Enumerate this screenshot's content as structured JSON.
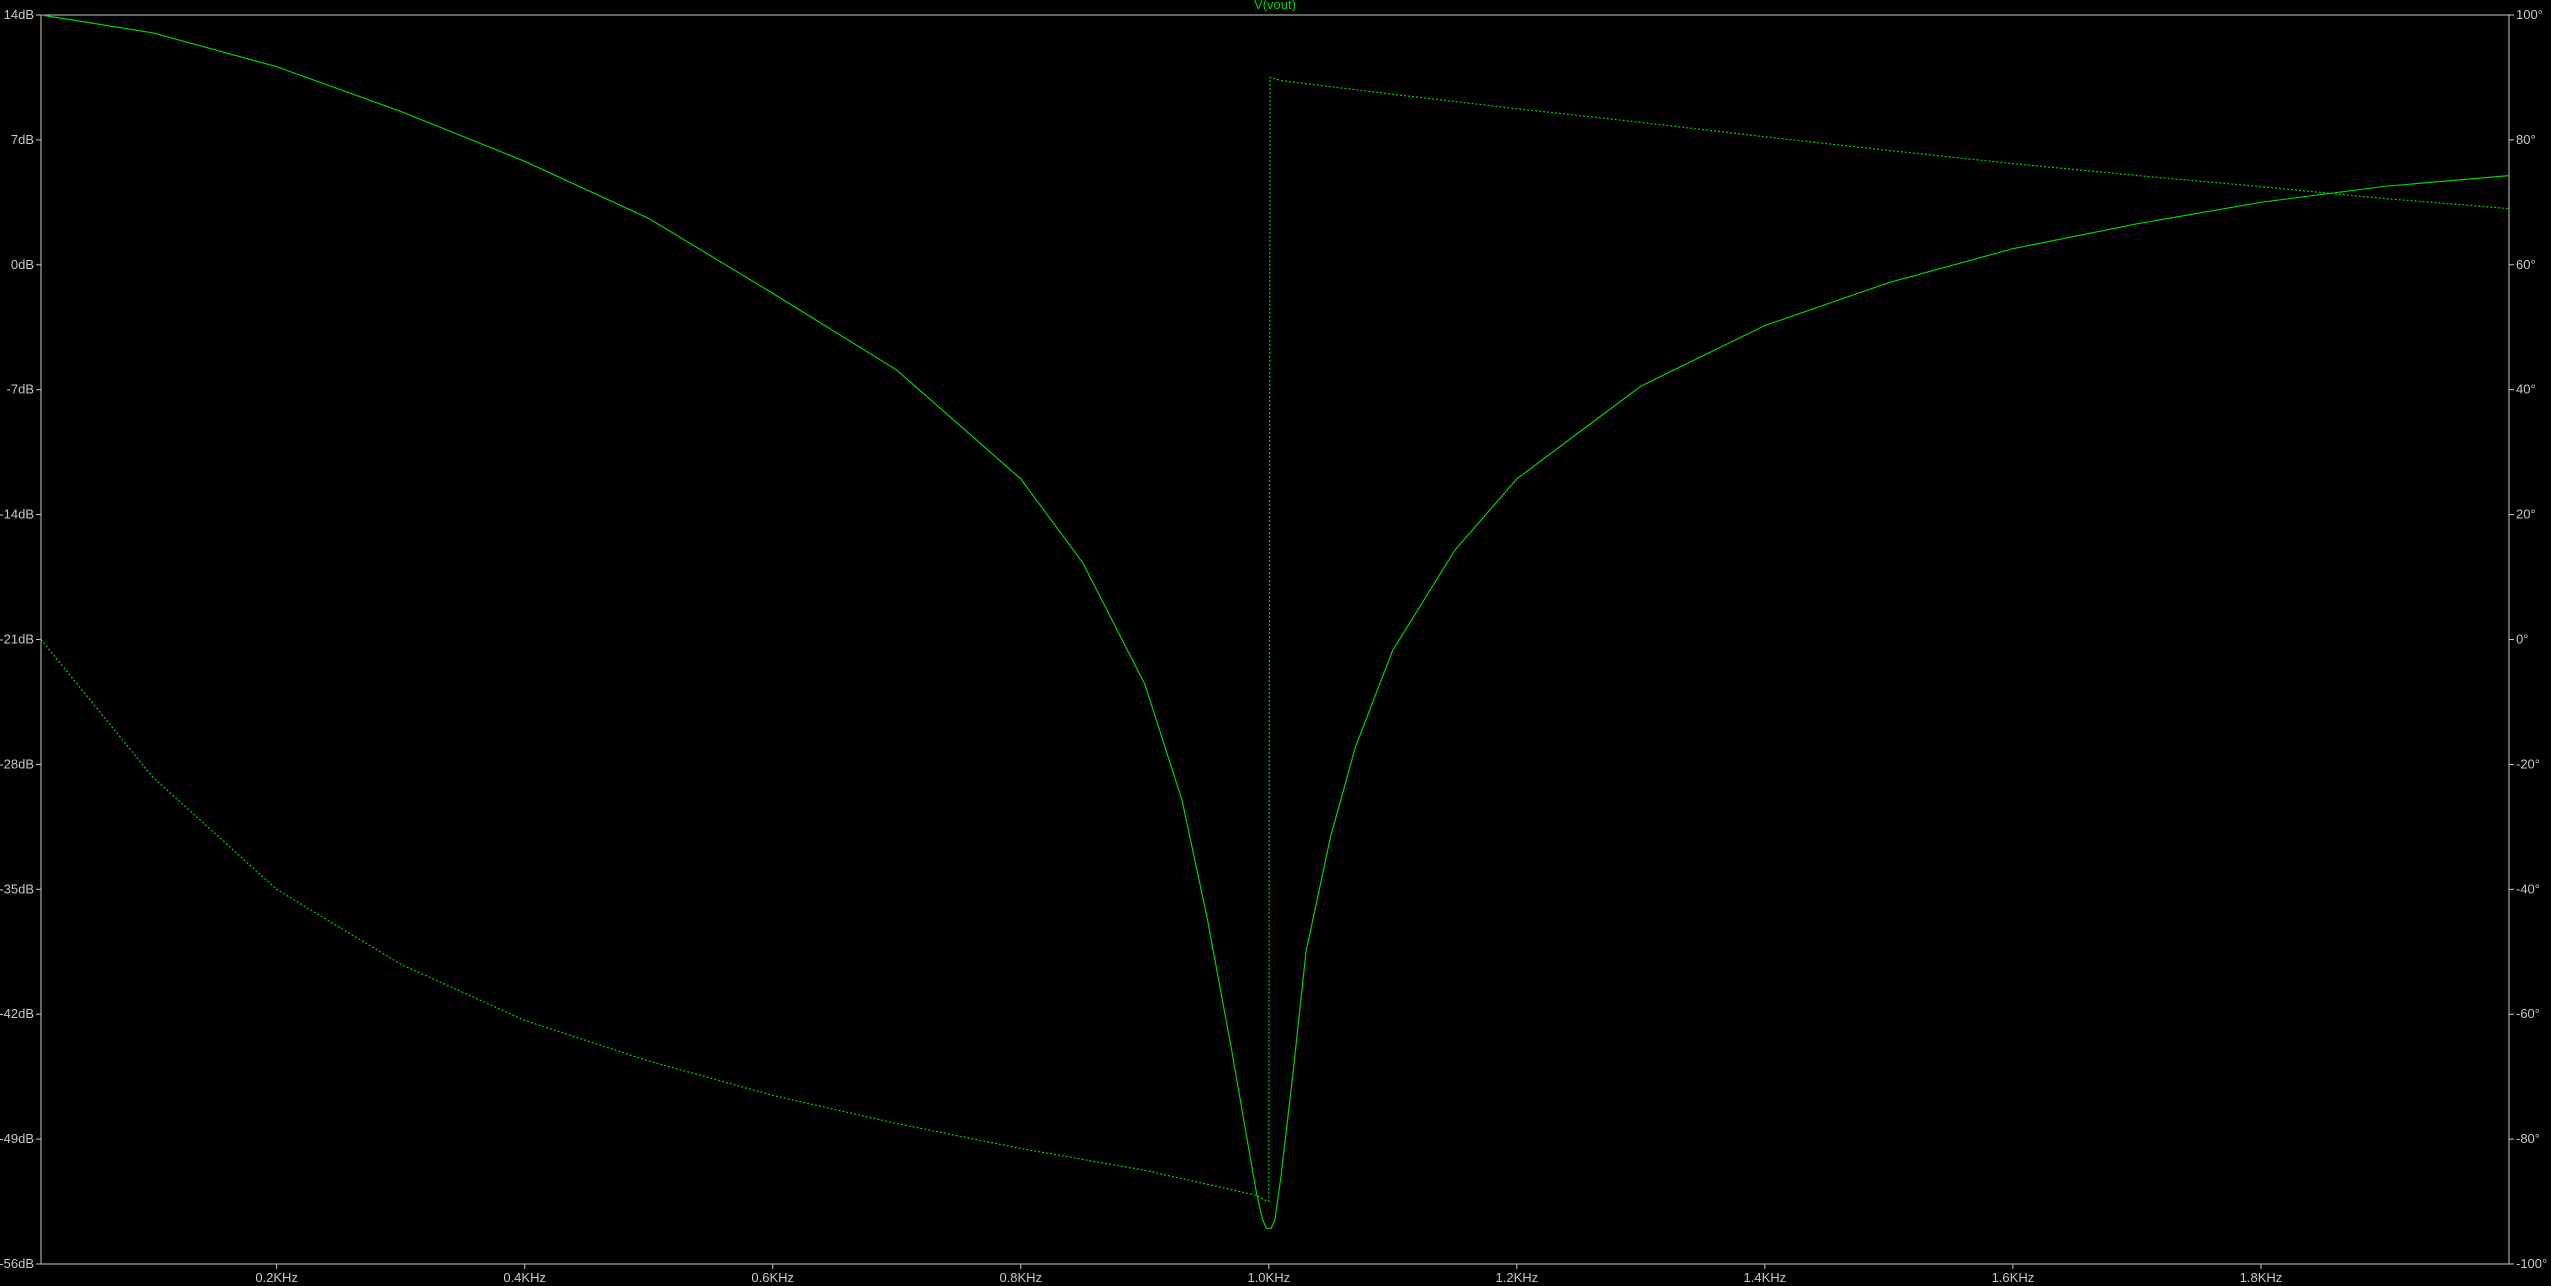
{
  "chart_data": {
    "type": "line",
    "title": "V(vout)",
    "xlabel": "",
    "ylabel": "",
    "grid": false,
    "colors": {
      "background": "#000000",
      "frame": "#c8c8c8",
      "trace": "#00d200",
      "title": "#00d200",
      "tick_text": "#c8c8c8"
    },
    "x_axis": {
      "unit": "Hz",
      "range": [
        10,
        2000
      ],
      "ticks": [
        {
          "value": 200,
          "label": "0.2KHz"
        },
        {
          "value": 400,
          "label": "0.4KHz"
        },
        {
          "value": 600,
          "label": "0.6KHz"
        },
        {
          "value": 800,
          "label": "0.8KHz"
        },
        {
          "value": 1000,
          "label": "1.0KHz"
        },
        {
          "value": 1200,
          "label": "1.2KHz"
        },
        {
          "value": 1400,
          "label": "1.4KHz"
        },
        {
          "value": 1600,
          "label": "1.6KHz"
        },
        {
          "value": 1800,
          "label": "1.8KHz"
        }
      ]
    },
    "y_left": {
      "unit": "dB",
      "range": [
        -56,
        14
      ],
      "ticks": [
        {
          "value": 14,
          "label": "14dB"
        },
        {
          "value": 7,
          "label": "7dB"
        },
        {
          "value": 0,
          "label": "0dB"
        },
        {
          "value": -7,
          "label": "-7dB"
        },
        {
          "value": -14,
          "label": "-14dB"
        },
        {
          "value": -21,
          "label": "-21dB"
        },
        {
          "value": -28,
          "label": "-28dB"
        },
        {
          "value": -35,
          "label": "-35dB"
        },
        {
          "value": -42,
          "label": "-42dB"
        },
        {
          "value": -49,
          "label": "-49dB"
        },
        {
          "value": -56,
          "label": "-56dB"
        }
      ]
    },
    "y_right": {
      "unit": "deg",
      "range": [
        -100,
        100
      ],
      "ticks": [
        {
          "value": 100,
          "label": "100°"
        },
        {
          "value": 80,
          "label": "80°"
        },
        {
          "value": 60,
          "label": "60°"
        },
        {
          "value": 40,
          "label": "40°"
        },
        {
          "value": 20,
          "label": "20°"
        },
        {
          "value": 0,
          "label": "0°"
        },
        {
          "value": -20,
          "label": "-20°"
        },
        {
          "value": -40,
          "label": "-40°"
        },
        {
          "value": -60,
          "label": "-60°"
        },
        {
          "value": -80,
          "label": "-80°"
        },
        {
          "value": -100,
          "label": "-100°"
        }
      ]
    },
    "series": [
      {
        "axis": "left",
        "style": "solid",
        "x": [
          10,
          100,
          200,
          300,
          400,
          500,
          600,
          700,
          800,
          850,
          900,
          930,
          950,
          970,
          980,
          990,
          995,
          998,
          1000,
          1002,
          1005,
          1010,
          1020,
          1030,
          1050,
          1070,
          1100,
          1150,
          1200,
          1300,
          1400,
          1500,
          1600,
          1700,
          1800,
          1900,
          2000
        ],
        "values": [
          14.0,
          13.0,
          11.1,
          8.6,
          5.8,
          2.6,
          -1.6,
          -5.9,
          -12.0,
          -16.7,
          -23.5,
          -30.0,
          -36.5,
          -44.0,
          -48.0,
          -52.0,
          -53.5,
          -54.0,
          -54.0,
          -54.0,
          -53.5,
          -51.0,
          -45.0,
          -38.5,
          -32.0,
          -27.0,
          -21.6,
          -16.0,
          -12.0,
          -6.8,
          -3.4,
          -1.0,
          0.9,
          2.3,
          3.5,
          4.4,
          5.0
        ]
      },
      {
        "axis": "right",
        "style": "dotted",
        "x": [
          10,
          100,
          200,
          300,
          400,
          500,
          600,
          700,
          800,
          900,
          990,
          999,
          1000,
          1001,
          1010,
          1100,
          1200,
          1300,
          1400,
          1500,
          1600,
          1700,
          1800,
          1900,
          2000
        ],
        "values": [
          0.0,
          -22.0,
          -40.0,
          -52.0,
          -61.0,
          -67.5,
          -73.0,
          -77.5,
          -81.5,
          -85.0,
          -89.0,
          -90.0,
          -90.0,
          90.0,
          89.5,
          87.3,
          85.0,
          82.8,
          80.5,
          78.3,
          76.2,
          74.3,
          72.5,
          70.6,
          69.0
        ]
      }
    ]
  }
}
